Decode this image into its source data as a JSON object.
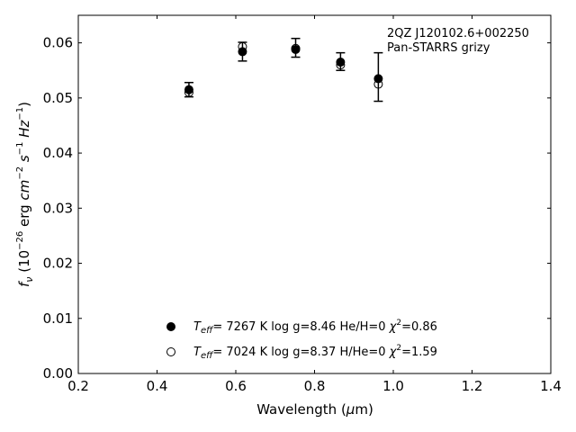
{
  "chart_data": {
    "type": "scatter",
    "annotation": {
      "object": "2QZ J120102.6+002250",
      "survey": "Pan-STARRS grizy"
    },
    "xlabel": "Wavelength (μm)",
    "ylabel": "f_ν (10^-26 erg cm^-2 s^-1 Hz^-1)",
    "xlim": [
      0.2,
      1.4
    ],
    "ylim": [
      0.0,
      0.065
    ],
    "xticks": [
      "0.2",
      "0.4",
      "0.6",
      "0.8",
      "1.0",
      "1.2",
      "1.4"
    ],
    "yticks": [
      "0.00",
      "0.01",
      "0.02",
      "0.03",
      "0.04",
      "0.05",
      "0.06"
    ],
    "grid": false,
    "observed": {
      "x": [
        0.481,
        0.617,
        0.752,
        0.866,
        0.962
      ],
      "y": [
        0.0515,
        0.0584,
        0.0591,
        0.0566,
        0.0538
      ],
      "err": [
        0.0013,
        0.0017,
        0.0017,
        0.0016,
        0.0044
      ]
    },
    "series": [
      {
        "marker": "filled",
        "legend": {
          "teff": "7267 K",
          "logg": "log g=8.46",
          "comp": "He/H=0",
          "chi2": "=0.86"
        },
        "x": [
          0.481,
          0.617,
          0.752,
          0.866,
          0.962
        ],
        "y": [
          0.0515,
          0.0584,
          0.0588,
          0.0565,
          0.0535
        ]
      },
      {
        "marker": "open",
        "legend": {
          "teff": "7024 K",
          "logg": "log g=8.37",
          "comp": "H/He=0",
          "chi2": "=1.59"
        },
        "x": [
          0.481,
          0.617,
          0.752,
          0.866,
          0.962
        ],
        "y": [
          0.051,
          0.0593,
          0.059,
          0.056,
          0.0525
        ]
      }
    ]
  }
}
